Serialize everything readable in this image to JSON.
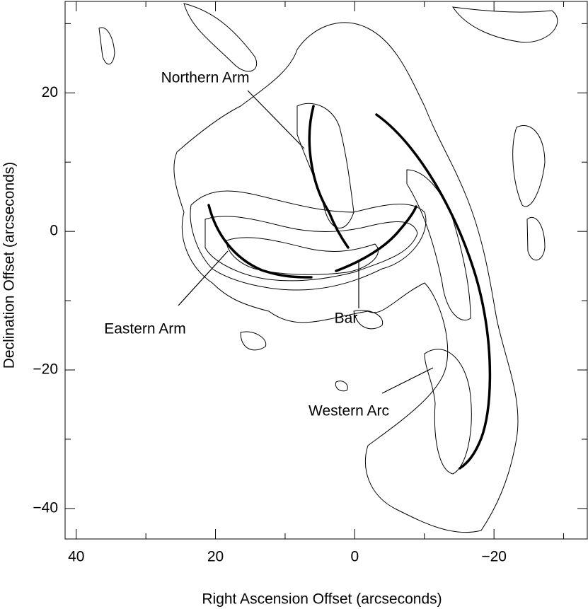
{
  "chart_data": {
    "type": "contour",
    "x_label": "Right Ascension Offset (arcseconds)",
    "y_label": "Declination Offset (arcseconds)",
    "xlim": [
      41.6,
      -33.4
    ],
    "ylim": [
      -44.4,
      33.2
    ],
    "xticks": [
      40,
      20,
      0,
      {
        "value": -20,
        "label": "−20"
      }
    ],
    "yticks": [
      20,
      0,
      {
        "value": -20,
        "label": "−20"
      },
      {
        "value": -40,
        "label": "−40"
      }
    ],
    "xminorticks": [
      30,
      10,
      -10,
      -30
    ],
    "yminorticks": [
      30,
      10,
      -10,
      -30
    ],
    "annotations": [
      "Northern Arm",
      "Eastern Arm",
      "Bar",
      "Western Arc"
    ]
  }
}
